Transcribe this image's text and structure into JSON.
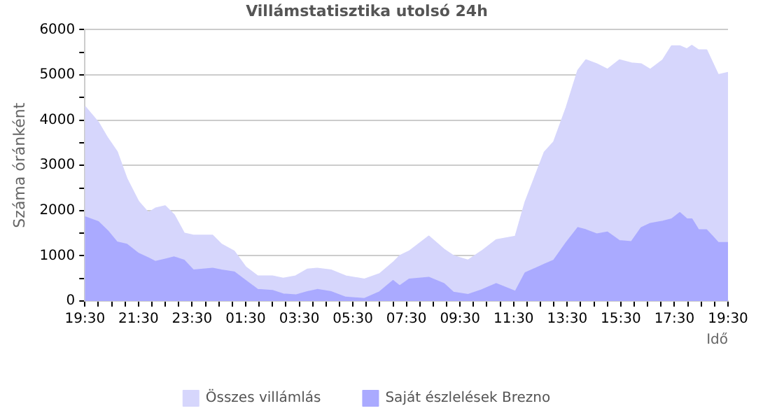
{
  "chart_data": {
    "type": "area",
    "title": "Villámstatisztika utolsó 24h",
    "xlabel": "Idő",
    "ylabel": "Száma óránként",
    "x": [
      "2000-01-01T19:30",
      "2000-01-01T20:00",
      "2000-01-01T20:21",
      "2000-01-01T20:42",
      "2000-01-01T21:04",
      "2000-01-01T21:30",
      "2000-01-01T21:52",
      "2000-01-01T22:08",
      "2000-01-01T22:30",
      "2000-01-01T22:50",
      "2000-01-01T23:12",
      "2000-01-01T23:33",
      "2000-01-02T00:16",
      "2000-01-02T00:36",
      "2000-01-02T01:04",
      "2000-01-02T01:30",
      "2000-01-02T01:57",
      "2000-01-02T02:30",
      "2000-01-02T02:54",
      "2000-01-02T03:22",
      "2000-01-02T03:48",
      "2000-01-02T04:10",
      "2000-01-02T04:42",
      "2000-01-02T05:14",
      "2000-01-02T05:56",
      "2000-01-02T06:30",
      "2000-01-02T07:00",
      "2000-01-02T07:15",
      "2000-01-02T07:36",
      "2000-01-02T08:20",
      "2000-01-02T08:54",
      "2000-01-02T09:15",
      "2000-01-02T09:48",
      "2000-01-02T10:18",
      "2000-01-02T10:51",
      "2000-01-02T11:34",
      "2000-01-02T11:56",
      "2000-01-02T12:39",
      "2000-01-02T13:00",
      "2000-01-02T13:28",
      "2000-01-02T13:54",
      "2000-01-02T14:12",
      "2000-01-02T14:36",
      "2000-01-02T15:00",
      "2000-01-02T15:27",
      "2000-01-02T15:54",
      "2000-01-02T16:16",
      "2000-01-02T16:36",
      "2000-01-02T17:04",
      "2000-01-02T17:24",
      "2000-01-02T17:42",
      "2000-01-02T17:58",
      "2000-01-02T18:09",
      "2000-01-02T18:24",
      "2000-01-02T18:42",
      "2000-01-02T19:08",
      "2000-01-02T19:30"
    ],
    "series": [
      {
        "name": "Összes villámlás",
        "color": "#d6d6fc",
        "values": [
          4300,
          3950,
          3600,
          3300,
          2700,
          2200,
          1950,
          2050,
          2100,
          1900,
          1500,
          1450,
          1450,
          1250,
          1100,
          750,
          550,
          550,
          500,
          550,
          700,
          720,
          680,
          550,
          480,
          600,
          850,
          1000,
          1100,
          1430,
          1140,
          1000,
          900,
          1100,
          1350,
          1430,
          2190,
          3290,
          3520,
          4280,
          5100,
          5330,
          5240,
          5120,
          5330,
          5260,
          5240,
          5120,
          5330,
          5640,
          5640,
          5570,
          5650,
          5550,
          5550,
          5000,
          5050
        ]
      },
      {
        "name": "Saját észlelések Brezno",
        "color": "#aaaaff",
        "values": [
          1860,
          1750,
          1550,
          1300,
          1250,
          1050,
          950,
          870,
          920,
          970,
          900,
          680,
          720,
          680,
          640,
          450,
          250,
          230,
          150,
          130,
          200,
          250,
          200,
          80,
          50,
          200,
          450,
          330,
          480,
          520,
          380,
          190,
          140,
          240,
          380,
          210,
          620,
          810,
          900,
          1290,
          1620,
          1570,
          1480,
          1520,
          1330,
          1310,
          1620,
          1710,
          1760,
          1810,
          1950,
          1810,
          1810,
          1570,
          1570,
          1290,
          1290
        ]
      }
    ],
    "xlim": [
      "2000-01-01T19:30",
      "2000-01-02T19:30"
    ],
    "xticks": [
      {
        "value": "2000-01-01T19:30",
        "label": "19:30"
      },
      {
        "value": "2000-01-01T20:00",
        "label": null
      },
      {
        "value": "2000-01-01T20:30",
        "label": null
      },
      {
        "value": "2000-01-01T21:00",
        "label": null
      },
      {
        "value": "2000-01-01T21:30",
        "label": "21:30"
      },
      {
        "value": "2000-01-01T22:00",
        "label": null
      },
      {
        "value": "2000-01-01T22:30",
        "label": null
      },
      {
        "value": "2000-01-01T23:00",
        "label": null
      },
      {
        "value": "2000-01-01T23:30",
        "label": "23:30"
      },
      {
        "value": "2000-01-02T00:00",
        "label": null
      },
      {
        "value": "2000-01-02T00:30",
        "label": null
      },
      {
        "value": "2000-01-02T01:00",
        "label": null
      },
      {
        "value": "2000-01-02T01:30",
        "label": "01:30"
      },
      {
        "value": "2000-01-02T02:00",
        "label": null
      },
      {
        "value": "2000-01-02T02:30",
        "label": null
      },
      {
        "value": "2000-01-02T03:00",
        "label": null
      },
      {
        "value": "2000-01-02T03:30",
        "label": "03:30"
      },
      {
        "value": "2000-01-02T04:00",
        "label": null
      },
      {
        "value": "2000-01-02T04:30",
        "label": null
      },
      {
        "value": "2000-01-02T05:00",
        "label": null
      },
      {
        "value": "2000-01-02T05:30",
        "label": "05:30"
      },
      {
        "value": "2000-01-02T06:00",
        "label": null
      },
      {
        "value": "2000-01-02T06:30",
        "label": null
      },
      {
        "value": "2000-01-02T07:00",
        "label": null
      },
      {
        "value": "2000-01-02T07:30",
        "label": "07:30"
      },
      {
        "value": "2000-01-02T08:00",
        "label": null
      },
      {
        "value": "2000-01-02T08:30",
        "label": null
      },
      {
        "value": "2000-01-02T09:00",
        "label": null
      },
      {
        "value": "2000-01-02T09:30",
        "label": "09:30"
      },
      {
        "value": "2000-01-02T10:00",
        "label": null
      },
      {
        "value": "2000-01-02T10:30",
        "label": null
      },
      {
        "value": "2000-01-02T11:00",
        "label": null
      },
      {
        "value": "2000-01-02T11:30",
        "label": "11:30"
      },
      {
        "value": "2000-01-02T12:00",
        "label": null
      },
      {
        "value": "2000-01-02T12:30",
        "label": null
      },
      {
        "value": "2000-01-02T13:00",
        "label": null
      },
      {
        "value": "2000-01-02T13:30",
        "label": "13:30"
      },
      {
        "value": "2000-01-02T14:00",
        "label": null
      },
      {
        "value": "2000-01-02T14:30",
        "label": null
      },
      {
        "value": "2000-01-02T15:00",
        "label": null
      },
      {
        "value": "2000-01-02T15:30",
        "label": "15:30"
      },
      {
        "value": "2000-01-02T16:00",
        "label": null
      },
      {
        "value": "2000-01-02T16:30",
        "label": null
      },
      {
        "value": "2000-01-02T17:00",
        "label": null
      },
      {
        "value": "2000-01-02T17:30",
        "label": "17:30"
      },
      {
        "value": "2000-01-02T18:00",
        "label": null
      },
      {
        "value": "2000-01-02T18:30",
        "label": null
      },
      {
        "value": "2000-01-02T19:00",
        "label": null
      },
      {
        "value": "2000-01-02T19:30",
        "label": "19:30"
      }
    ],
    "ylim": [
      0,
      6000
    ],
    "yticks": [
      0,
      {
        "value": 500,
        "label": null
      },
      1000,
      {
        "value": 1500,
        "label": null
      },
      2000,
      {
        "value": 2500,
        "label": null
      },
      3000,
      {
        "value": 3500,
        "label": null
      },
      4000,
      {
        "value": 4500,
        "label": null
      },
      5000,
      {
        "value": 5500,
        "label": null
      },
      6000
    ],
    "grid": "y",
    "legend": "bottom",
    "marker": "none"
  }
}
